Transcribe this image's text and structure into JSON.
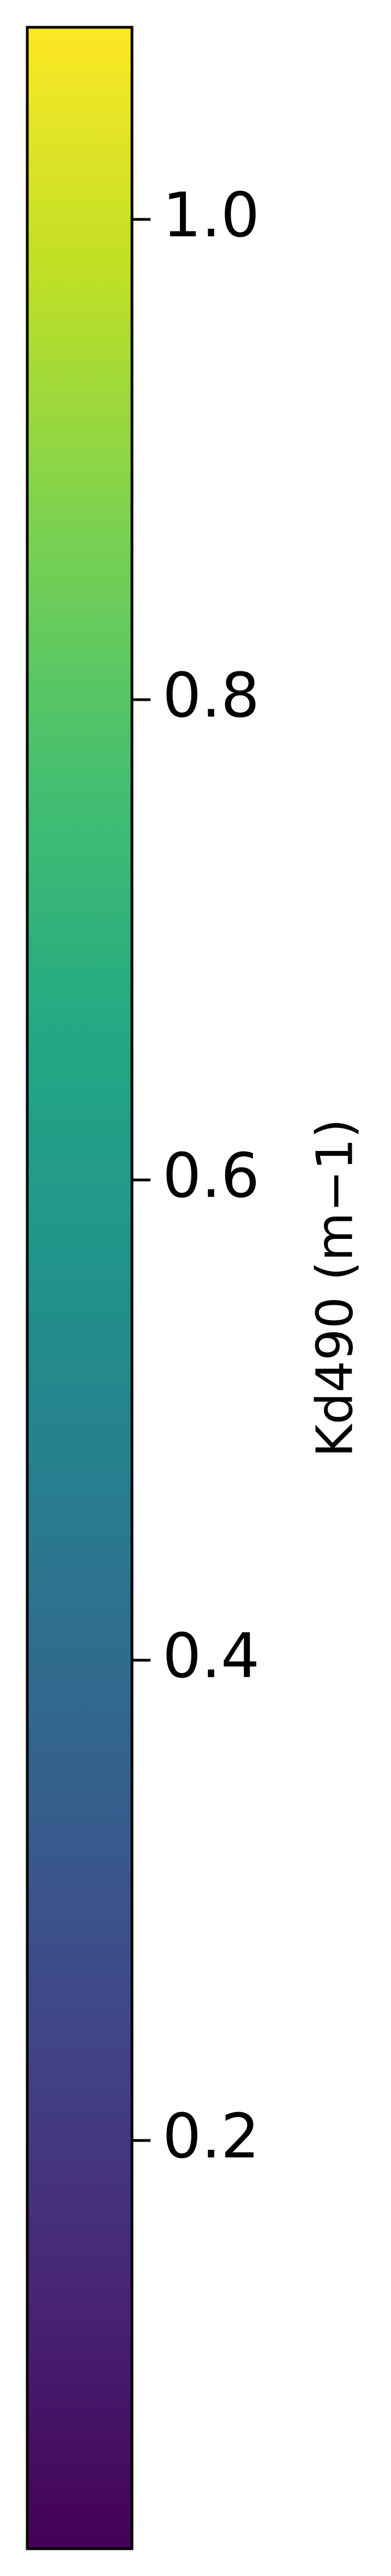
{
  "chart_data": {
    "type": "colorbar",
    "colormap": "viridis",
    "orientation": "vertical",
    "label": "Kd490 (m−1)",
    "vmin": 0.03,
    "vmax": 1.08,
    "ticks": [
      0.2,
      0.4,
      0.6,
      0.8,
      1.0
    ],
    "tick_labels": [
      "0.2",
      "0.4",
      "0.6",
      "0.8",
      "1.0"
    ],
    "colors": {
      "low": "#440154",
      "mid": "#21918c",
      "high": "#fde725"
    }
  }
}
